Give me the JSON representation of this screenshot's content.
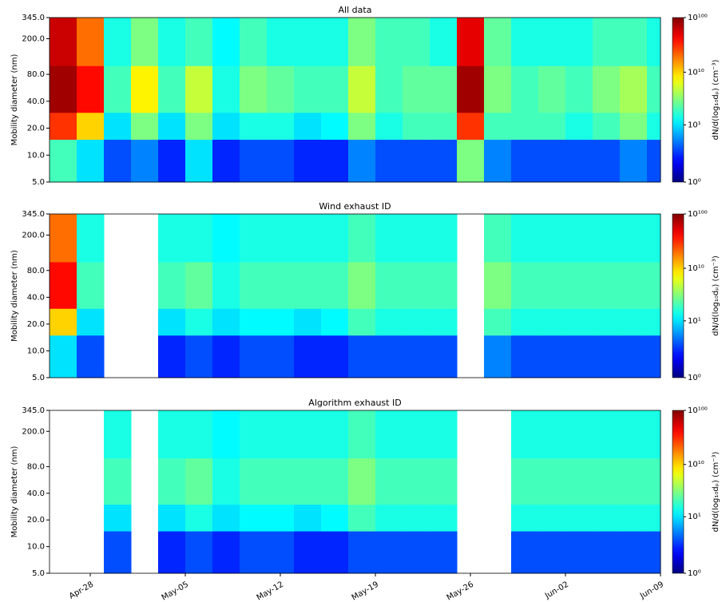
{
  "chart_data": [
    {
      "type": "heatmap",
      "title": "All data",
      "ylabel": "Mobility diameter (nm)",
      "yscale": "log",
      "ylim": [
        5,
        345
      ],
      "yticks": [
        {
          "value": 5,
          "label": "5.0"
        },
        {
          "value": 10,
          "label": "10.0"
        },
        {
          "value": 20,
          "label": "20.0"
        },
        {
          "value": 40,
          "label": "40.0"
        },
        {
          "value": 80,
          "label": "80.0"
        },
        {
          "value": 200,
          "label": "200.0"
        },
        {
          "value": 345,
          "label": "345.0"
        }
      ],
      "xlim": [
        "Apr-25",
        "Jun-09"
      ],
      "xbins": [
        "Apr-25",
        "Apr-27",
        "Apr-29",
        "May-01",
        "May-03",
        "May-05",
        "May-07",
        "May-09",
        "May-11",
        "May-13",
        "May-15",
        "May-17",
        "May-19",
        "May-21",
        "May-23",
        "May-25",
        "May-27",
        "May-29",
        "May-31",
        "Jun-02",
        "Jun-04",
        "Jun-06",
        "Jun-08",
        "Jun-09"
      ],
      "ybins": [
        5,
        15,
        30,
        100,
        345
      ],
      "z": [
        [
          100,
          10,
          2,
          3,
          1.6,
          10,
          1.6,
          2,
          2,
          1.6,
          1.6,
          3,
          2,
          2,
          2,
          1000,
          3,
          2,
          2,
          2,
          2,
          3,
          2
        ],
        [
          1e+30,
          10000000000.0,
          10,
          1000,
          10,
          1000,
          10,
          30,
          30,
          10,
          16,
          1000,
          30,
          100,
          100,
          1e+30,
          100,
          100,
          100,
          30,
          100,
          1000,
          30
        ],
        [
          1e+80,
          1e+40,
          100,
          100000000.0,
          100,
          100000.0,
          30,
          1000,
          300,
          100,
          100,
          100000.0,
          100,
          300,
          300,
          1e+80,
          1000,
          100,
          300,
          100,
          1000,
          10000.0,
          100
        ],
        [
          1e+60,
          1e+20,
          30,
          1000,
          30,
          100,
          16,
          100,
          30,
          30,
          30,
          1000,
          100,
          100,
          30,
          1e+50,
          300,
          30,
          30,
          30,
          100,
          100,
          30
        ]
      ],
      "colorbar": {
        "label": "dN/d(log₁₀dₚ) (cm⁻³)",
        "colormap": "jet",
        "scale": "loglog",
        "clim": [
          1,
          1e+100
        ],
        "ticks": [
          {
            "value": 1,
            "label": "10⁰"
          },
          {
            "value": 10,
            "label": "10¹"
          },
          {
            "value": 10000000000.0,
            "label": "10¹⁰"
          },
          {
            "value": 1e+100,
            "label": "10¹⁰⁰"
          }
        ]
      }
    },
    {
      "type": "heatmap",
      "title": "Wind exhaust ID",
      "ylabel": "Mobility diameter (nm)",
      "yscale": "log",
      "ylim": [
        5,
        345
      ],
      "yticks": [
        {
          "value": 5,
          "label": "5.0"
        },
        {
          "value": 10,
          "label": "10.0"
        },
        {
          "value": 20,
          "label": "20.0"
        },
        {
          "value": 40,
          "label": "40.0"
        },
        {
          "value": 80,
          "label": "80.0"
        },
        {
          "value": 200,
          "label": "200.0"
        },
        {
          "value": 345,
          "label": "345.0"
        }
      ],
      "xlim": [
        "Apr-25",
        "Jun-09"
      ],
      "xbins": [
        "Apr-25",
        "Apr-27",
        "Apr-29",
        "May-01",
        "May-03",
        "May-05",
        "May-07",
        "May-09",
        "May-11",
        "May-13",
        "May-15",
        "May-17",
        "May-19",
        "May-21",
        "May-23",
        "May-25",
        "May-27",
        "May-29",
        "May-31",
        "Jun-02",
        "Jun-04",
        "Jun-06",
        "Jun-08",
        "Jun-09"
      ],
      "ybins": [
        5,
        15,
        30,
        100,
        345
      ],
      "z": [
        [
          10,
          2,
          null,
          null,
          1.6,
          2,
          1.6,
          2,
          2,
          1.6,
          1.6,
          2,
          2,
          2,
          2,
          null,
          3,
          2,
          2,
          2,
          2,
          2,
          2
        ],
        [
          10000000000.0,
          10,
          null,
          null,
          10,
          30,
          10,
          16,
          16,
          10,
          16,
          100,
          30,
          30,
          30,
          null,
          100,
          30,
          30,
          30,
          30,
          30,
          30
        ],
        [
          1e+40,
          100,
          null,
          null,
          100,
          300,
          30,
          100,
          100,
          100,
          100,
          1000,
          100,
          100,
          100,
          null,
          1000,
          100,
          100,
          100,
          100,
          100,
          100
        ],
        [
          1e+20,
          30,
          null,
          null,
          30,
          30,
          16,
          30,
          30,
          30,
          30,
          100,
          30,
          30,
          30,
          null,
          100,
          30,
          30,
          30,
          30,
          30,
          30
        ]
      ],
      "colorbar": {
        "label": "dN/d(log₁₀dₚ) (cm⁻³)",
        "colormap": "jet",
        "scale": "loglog",
        "clim": [
          1,
          1e+100
        ],
        "ticks": [
          {
            "value": 1,
            "label": "10⁰"
          },
          {
            "value": 10,
            "label": "10¹"
          },
          {
            "value": 10000000000.0,
            "label": "10¹⁰"
          },
          {
            "value": 1e+100,
            "label": "10¹⁰⁰"
          }
        ]
      }
    },
    {
      "type": "heatmap",
      "title": "Algorithm exhaust ID",
      "ylabel": "Mobility diameter (nm)",
      "yscale": "log",
      "ylim": [
        5,
        345
      ],
      "yticks": [
        {
          "value": 5,
          "label": "5.0"
        },
        {
          "value": 10,
          "label": "10.0"
        },
        {
          "value": 20,
          "label": "20.0"
        },
        {
          "value": 40,
          "label": "40.0"
        },
        {
          "value": 80,
          "label": "80.0"
        },
        {
          "value": 200,
          "label": "200.0"
        },
        {
          "value": 345,
          "label": "345.0"
        }
      ],
      "xlim": [
        "Apr-25",
        "Jun-09"
      ],
      "xticks": [
        "Apr-28",
        "May-05",
        "May-12",
        "May-19",
        "May-26",
        "Jun-02",
        "Jun-09"
      ],
      "xbins": [
        "Apr-25",
        "Apr-27",
        "Apr-29",
        "May-01",
        "May-03",
        "May-05",
        "May-07",
        "May-09",
        "May-11",
        "May-13",
        "May-15",
        "May-17",
        "May-19",
        "May-21",
        "May-23",
        "May-25",
        "May-27",
        "May-29",
        "May-31",
        "Jun-02",
        "Jun-04",
        "Jun-06",
        "Jun-08",
        "Jun-09"
      ],
      "ybins": [
        5,
        15,
        30,
        100,
        345
      ],
      "z": [
        [
          null,
          null,
          2,
          null,
          1.6,
          2,
          1.6,
          2,
          2,
          1.6,
          1.6,
          2,
          2,
          2,
          2,
          null,
          null,
          2,
          2,
          2,
          2,
          2,
          2
        ],
        [
          null,
          null,
          10,
          null,
          10,
          30,
          10,
          16,
          16,
          10,
          16,
          100,
          30,
          30,
          30,
          null,
          null,
          30,
          30,
          30,
          30,
          30,
          30
        ],
        [
          null,
          null,
          100,
          null,
          100,
          300,
          30,
          100,
          100,
          100,
          100,
          1000,
          100,
          100,
          100,
          null,
          null,
          100,
          100,
          100,
          100,
          100,
          100
        ],
        [
          null,
          null,
          30,
          null,
          30,
          30,
          16,
          30,
          30,
          30,
          30,
          100,
          30,
          30,
          30,
          null,
          null,
          30,
          30,
          30,
          30,
          30,
          30
        ]
      ],
      "colorbar": {
        "label": "dN/d(log₁₀dₚ) (cm⁻³)",
        "colormap": "jet",
        "scale": "loglog",
        "clim": [
          1,
          1e+100
        ],
        "ticks": [
          {
            "value": 1,
            "label": "10⁰"
          },
          {
            "value": 10,
            "label": "10¹"
          },
          {
            "value": 10000000000.0,
            "label": "10¹⁰"
          },
          {
            "value": 1e+100,
            "label": "10¹⁰⁰"
          }
        ]
      }
    }
  ]
}
